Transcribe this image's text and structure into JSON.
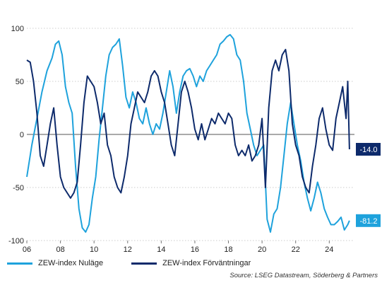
{
  "chart_data": {
    "type": "line",
    "title": "",
    "xlabel": "",
    "ylabel": "",
    "xlim": [
      2006,
      2025.5
    ],
    "ylim": [
      -100,
      100
    ],
    "x_ticks": [
      "06",
      "08",
      "10",
      "12",
      "14",
      "16",
      "18",
      "20",
      "22",
      "24"
    ],
    "y_ticks": [
      100,
      50,
      0,
      -50,
      -100
    ],
    "grid": "horizontal dotted",
    "legend": "bottom-left",
    "series": [
      {
        "name": "ZEW-index Nuläge",
        "color": "#1ea2dc",
        "end_label": "-81.2",
        "points": [
          [
            2006.0,
            -40
          ],
          [
            2006.3,
            -10
          ],
          [
            2006.6,
            15
          ],
          [
            2006.9,
            40
          ],
          [
            2007.2,
            60
          ],
          [
            2007.5,
            72
          ],
          [
            2007.7,
            85
          ],
          [
            2007.9,
            88
          ],
          [
            2008.1,
            75
          ],
          [
            2008.3,
            45
          ],
          [
            2008.5,
            30
          ],
          [
            2008.7,
            20
          ],
          [
            2008.9,
            -30
          ],
          [
            2009.1,
            -70
          ],
          [
            2009.3,
            -88
          ],
          [
            2009.5,
            -92
          ],
          [
            2009.7,
            -85
          ],
          [
            2009.9,
            -60
          ],
          [
            2010.1,
            -40
          ],
          [
            2010.3,
            -5
          ],
          [
            2010.5,
            25
          ],
          [
            2010.7,
            55
          ],
          [
            2010.9,
            75
          ],
          [
            2011.1,
            82
          ],
          [
            2011.3,
            85
          ],
          [
            2011.5,
            90
          ],
          [
            2011.7,
            65
          ],
          [
            2011.9,
            35
          ],
          [
            2012.1,
            25
          ],
          [
            2012.3,
            40
          ],
          [
            2012.5,
            30
          ],
          [
            2012.7,
            15
          ],
          [
            2012.9,
            10
          ],
          [
            2013.1,
            25
          ],
          [
            2013.3,
            10
          ],
          [
            2013.5,
            0
          ],
          [
            2013.7,
            10
          ],
          [
            2013.9,
            5
          ],
          [
            2014.1,
            20
          ],
          [
            2014.3,
            40
          ],
          [
            2014.5,
            60
          ],
          [
            2014.7,
            45
          ],
          [
            2014.9,
            20
          ],
          [
            2015.1,
            40
          ],
          [
            2015.3,
            55
          ],
          [
            2015.5,
            60
          ],
          [
            2015.7,
            62
          ],
          [
            2015.9,
            55
          ],
          [
            2016.1,
            45
          ],
          [
            2016.3,
            55
          ],
          [
            2016.5,
            50
          ],
          [
            2016.7,
            60
          ],
          [
            2016.9,
            65
          ],
          [
            2017.1,
            70
          ],
          [
            2017.3,
            75
          ],
          [
            2017.5,
            85
          ],
          [
            2017.7,
            88
          ],
          [
            2017.9,
            92
          ],
          [
            2018.1,
            94
          ],
          [
            2018.3,
            90
          ],
          [
            2018.5,
            75
          ],
          [
            2018.7,
            70
          ],
          [
            2018.9,
            50
          ],
          [
            2019.1,
            20
          ],
          [
            2019.3,
            5
          ],
          [
            2019.5,
            -10
          ],
          [
            2019.7,
            -20
          ],
          [
            2019.9,
            -15
          ],
          [
            2020.1,
            -10
          ],
          [
            2020.3,
            -80
          ],
          [
            2020.5,
            -92
          ],
          [
            2020.7,
            -75
          ],
          [
            2020.9,
            -70
          ],
          [
            2021.1,
            -50
          ],
          [
            2021.3,
            -20
          ],
          [
            2021.5,
            10
          ],
          [
            2021.7,
            30
          ],
          [
            2021.9,
            10
          ],
          [
            2022.1,
            -10
          ],
          [
            2022.3,
            -25
          ],
          [
            2022.5,
            -45
          ],
          [
            2022.7,
            -60
          ],
          [
            2022.9,
            -72
          ],
          [
            2023.1,
            -60
          ],
          [
            2023.3,
            -45
          ],
          [
            2023.5,
            -55
          ],
          [
            2023.7,
            -70
          ],
          [
            2023.9,
            -78
          ],
          [
            2024.1,
            -85
          ],
          [
            2024.3,
            -85
          ],
          [
            2024.5,
            -82
          ],
          [
            2024.7,
            -78
          ],
          [
            2024.9,
            -90
          ],
          [
            2025.1,
            -85
          ],
          [
            2025.2,
            -81.2
          ]
        ]
      },
      {
        "name": "ZEW-index Förväntningar",
        "color": "#0d2a6b",
        "end_label": "-14.0",
        "points": [
          [
            2006.0,
            70
          ],
          [
            2006.2,
            68
          ],
          [
            2006.4,
            50
          ],
          [
            2006.6,
            20
          ],
          [
            2006.8,
            -20
          ],
          [
            2007.0,
            -30
          ],
          [
            2007.2,
            -10
          ],
          [
            2007.4,
            10
          ],
          [
            2007.6,
            25
          ],
          [
            2007.8,
            -10
          ],
          [
            2008.0,
            -40
          ],
          [
            2008.2,
            -50
          ],
          [
            2008.4,
            -55
          ],
          [
            2008.6,
            -60
          ],
          [
            2008.8,
            -55
          ],
          [
            2009.0,
            -45
          ],
          [
            2009.2,
            -10
          ],
          [
            2009.4,
            30
          ],
          [
            2009.6,
            55
          ],
          [
            2009.8,
            50
          ],
          [
            2010.0,
            45
          ],
          [
            2010.2,
            30
          ],
          [
            2010.4,
            10
          ],
          [
            2010.6,
            20
          ],
          [
            2010.8,
            -10
          ],
          [
            2011.0,
            -20
          ],
          [
            2011.2,
            -40
          ],
          [
            2011.4,
            -50
          ],
          [
            2011.6,
            -55
          ],
          [
            2011.8,
            -40
          ],
          [
            2012.0,
            -20
          ],
          [
            2012.2,
            10
          ],
          [
            2012.4,
            25
          ],
          [
            2012.6,
            40
          ],
          [
            2012.8,
            35
          ],
          [
            2013.0,
            30
          ],
          [
            2013.2,
            40
          ],
          [
            2013.4,
            55
          ],
          [
            2013.6,
            60
          ],
          [
            2013.8,
            55
          ],
          [
            2014.0,
            40
          ],
          [
            2014.2,
            30
          ],
          [
            2014.4,
            10
          ],
          [
            2014.6,
            -10
          ],
          [
            2014.8,
            -20
          ],
          [
            2015.0,
            10
          ],
          [
            2015.2,
            40
          ],
          [
            2015.4,
            50
          ],
          [
            2015.6,
            40
          ],
          [
            2015.8,
            25
          ],
          [
            2016.0,
            5
          ],
          [
            2016.2,
            -5
          ],
          [
            2016.4,
            10
          ],
          [
            2016.6,
            -5
          ],
          [
            2016.8,
            5
          ],
          [
            2017.0,
            15
          ],
          [
            2017.2,
            10
          ],
          [
            2017.4,
            20
          ],
          [
            2017.6,
            15
          ],
          [
            2017.8,
            10
          ],
          [
            2018.0,
            20
          ],
          [
            2018.2,
            15
          ],
          [
            2018.4,
            -10
          ],
          [
            2018.6,
            -20
          ],
          [
            2018.8,
            -15
          ],
          [
            2019.0,
            -20
          ],
          [
            2019.2,
            -10
          ],
          [
            2019.4,
            -25
          ],
          [
            2019.6,
            -20
          ],
          [
            2019.8,
            -10
          ],
          [
            2020.0,
            15
          ],
          [
            2020.2,
            -50
          ],
          [
            2020.4,
            25
          ],
          [
            2020.6,
            60
          ],
          [
            2020.8,
            70
          ],
          [
            2021.0,
            60
          ],
          [
            2021.2,
            75
          ],
          [
            2021.4,
            80
          ],
          [
            2021.6,
            60
          ],
          [
            2021.8,
            10
          ],
          [
            2022.0,
            -10
          ],
          [
            2022.2,
            -20
          ],
          [
            2022.4,
            -40
          ],
          [
            2022.6,
            -50
          ],
          [
            2022.8,
            -55
          ],
          [
            2023.0,
            -30
          ],
          [
            2023.2,
            -10
          ],
          [
            2023.4,
            15
          ],
          [
            2023.6,
            25
          ],
          [
            2023.8,
            5
          ],
          [
            2024.0,
            -10
          ],
          [
            2024.2,
            -15
          ],
          [
            2024.4,
            15
          ],
          [
            2024.6,
            30
          ],
          [
            2024.8,
            45
          ],
          [
            2025.0,
            15
          ],
          [
            2025.1,
            50
          ],
          [
            2025.2,
            -14.0
          ]
        ]
      }
    ]
  },
  "source": "Source: LSEG Datastream, Söderberg & Partners"
}
